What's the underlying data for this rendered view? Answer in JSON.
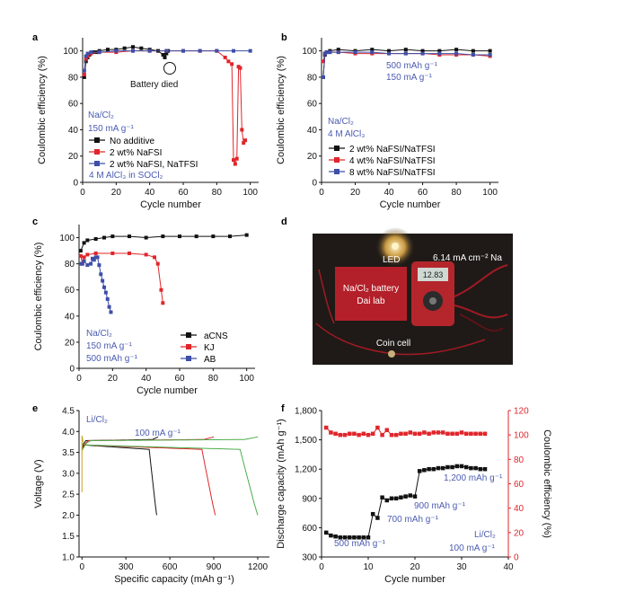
{
  "panels": {
    "a": {
      "letter": "a",
      "xlabel": "Cycle number",
      "ylabel": "Coulombic efficiency (%)",
      "x_ticks": [
        "0",
        "20",
        "40",
        "60",
        "80",
        "100"
      ],
      "y_ticks": [
        "0",
        "20",
        "40",
        "60",
        "80",
        "100"
      ],
      "annotation": "Battery died",
      "info": [
        "Na/Cl₂",
        "150 mA g⁻¹"
      ],
      "legend": [
        "No additive",
        "2 wt% NaFSI",
        "2 wt% NaFSI, NaTFSI"
      ],
      "electrolyte": "4 M AlCl₃ in SOCl₂"
    },
    "b": {
      "letter": "b",
      "xlabel": "Cycle number",
      "ylabel": "Coulombic efficiency (%)",
      "x_ticks": [
        "0",
        "20",
        "40",
        "60",
        "80",
        "100"
      ],
      "y_ticks": [
        "0",
        "20",
        "40",
        "60",
        "80",
        "100"
      ],
      "rates": [
        "500 mAh g⁻¹",
        "150 mA g⁻¹"
      ],
      "info": [
        "Na/Cl₂",
        "4 M AlCl₃"
      ],
      "legend": [
        "2 wt% NaFSI/NaTFSI",
        "4 wt% NaFSI/NaTFSI",
        "8 wt% NaFSI/NaTFSI"
      ]
    },
    "c": {
      "letter": "c",
      "xlabel": "Cycle number",
      "ylabel": "Coulombic efficiency (%)",
      "x_ticks": [
        "0",
        "20",
        "40",
        "60",
        "80",
        "100"
      ],
      "y_ticks": [
        "0",
        "20",
        "40",
        "60",
        "80",
        "100"
      ],
      "info": [
        "Na/Cl₂",
        "150 mA g⁻¹",
        "500 mAh g⁻¹"
      ],
      "legend": [
        "aCNS",
        "KJ",
        "AB"
      ]
    },
    "d": {
      "letter": "d",
      "labels": {
        "led": "LED",
        "current": "6.14 mA cm⁻² Na",
        "battery": "Na/Cl₂ battery",
        "lab": "Dai lab",
        "coin": "Coin cell",
        "meter": "12.83"
      }
    },
    "e": {
      "letter": "e",
      "xlabel": "Specific capacity (mAh g⁻¹)",
      "ylabel": "Voltage (V)",
      "x_ticks": [
        "0",
        "300",
        "600",
        "900",
        "1200"
      ],
      "y_ticks": [
        "1.0",
        "1.5",
        "2.0",
        "2.5",
        "3.0",
        "3.5",
        "4.0",
        "4.5"
      ],
      "system": "Li/Cl₂",
      "rate": "100 mA g⁻¹"
    },
    "f": {
      "letter": "f",
      "xlabel": "Cycle number",
      "ylabel": "Discharge capacity (mAh g⁻¹)",
      "y2label": "Coulombic efficiency (%)",
      "x_ticks": [
        "0",
        "10",
        "20",
        "30",
        "40"
      ],
      "y_ticks": [
        "300",
        "600",
        "900",
        "1,200",
        "1,500",
        "1,800"
      ],
      "y2_ticks": [
        "0",
        "20",
        "40",
        "60",
        "80",
        "100",
        "120"
      ],
      "steps": [
        "500 mAh g⁻¹",
        "700 mAh g⁻¹",
        "900 mAh g⁻¹",
        "1,200 mAh g⁻¹"
      ],
      "system": "Li/Cl₂",
      "rate": "100 mA g⁻¹"
    }
  },
  "colors": {
    "black": "#111111",
    "red": "#e0262b",
    "blue": "#3d4fa8",
    "green": "#5cb85c",
    "olive": "#c9a227",
    "label_blue": "#4b5bb0"
  },
  "chart_data": [
    {
      "panel": "a",
      "type": "scatter",
      "xlim": [
        0,
        105
      ],
      "ylim": [
        0,
        110
      ],
      "series": [
        {
          "name": "No additive",
          "color": "black",
          "x": [
            1,
            2,
            3,
            4,
            6,
            8,
            10,
            15,
            20,
            25,
            30,
            35,
            40,
            45,
            48,
            49,
            50,
            51
          ],
          "y": [
            80,
            92,
            95,
            97,
            99,
            99,
            100,
            101,
            101,
            102,
            103,
            102,
            101,
            100,
            97,
            95,
            98,
            100
          ]
        },
        {
          "name": "2 wt% NaFSI",
          "color": "red",
          "x": [
            1,
            2,
            3,
            5,
            10,
            20,
            30,
            40,
            50,
            60,
            70,
            80,
            85,
            87,
            89,
            90,
            91,
            92,
            93,
            94,
            95,
            96,
            97
          ],
          "y": [
            82,
            94,
            96,
            98,
            99,
            99,
            100,
            100,
            100,
            100,
            100,
            100,
            95,
            92,
            90,
            17,
            14,
            18,
            88,
            87,
            40,
            30,
            32
          ]
        },
        {
          "name": "2 wt% NaFSI, NaTFSI",
          "color": "blue",
          "x": [
            1,
            2,
            3,
            5,
            10,
            20,
            30,
            40,
            50,
            60,
            70,
            80,
            90,
            100
          ],
          "y": [
            85,
            96,
            98,
            99,
            99,
            100,
            100,
            100,
            100,
            100,
            100,
            100,
            100,
            100
          ]
        }
      ]
    },
    {
      "panel": "b",
      "type": "scatter",
      "xlim": [
        0,
        105
      ],
      "ylim": [
        0,
        110
      ],
      "series": [
        {
          "name": "2 wt% NaFSI/NaTFSI",
          "color": "black",
          "x": [
            1,
            2,
            3,
            5,
            10,
            20,
            30,
            40,
            50,
            60,
            70,
            80,
            90,
            100
          ],
          "y": [
            80,
            97,
            99,
            100,
            101,
            100,
            101,
            100,
            101,
            100,
            100,
            101,
            100,
            100
          ]
        },
        {
          "name": "4 wt% NaFSI/NaTFSI",
          "color": "red",
          "x": [
            1,
            2,
            3,
            5,
            10,
            20,
            30,
            40,
            50,
            60,
            70,
            80,
            90,
            100
          ],
          "y": [
            92,
            98,
            99,
            99,
            99,
            98,
            98,
            98,
            98,
            98,
            97,
            97,
            97,
            96
          ]
        },
        {
          "name": "8 wt% NaFSI/NaTFSI",
          "color": "blue",
          "x": [
            1,
            2,
            3,
            5,
            10,
            20,
            30,
            40,
            50,
            60,
            70,
            80,
            90,
            100
          ],
          "y": [
            80,
            98,
            99,
            99,
            99,
            99,
            99,
            98,
            98,
            98,
            98,
            98,
            97,
            97
          ]
        }
      ]
    },
    {
      "panel": "c",
      "type": "scatter",
      "xlim": [
        0,
        105
      ],
      "ylim": [
        0,
        110
      ],
      "series": [
        {
          "name": "aCNS",
          "color": "black",
          "x": [
            1,
            3,
            5,
            10,
            15,
            20,
            30,
            40,
            50,
            60,
            70,
            80,
            90,
            100
          ],
          "y": [
            90,
            96,
            98,
            99,
            100,
            101,
            101,
            100,
            101,
            101,
            101,
            101,
            101,
            102
          ]
        },
        {
          "name": "KJ",
          "color": "red",
          "x": [
            1,
            2,
            3,
            5,
            10,
            20,
            30,
            40,
            45,
            47,
            49,
            50
          ],
          "y": [
            86,
            80,
            85,
            87,
            88,
            88,
            88,
            87,
            85,
            80,
            60,
            50
          ]
        },
        {
          "name": "AB",
          "color": "blue",
          "x": [
            1,
            2,
            3,
            5,
            7,
            8,
            9,
            10,
            11,
            12,
            13,
            14,
            15,
            16,
            17,
            18,
            19
          ],
          "y": [
            80,
            80,
            82,
            79,
            80,
            84,
            83,
            85,
            85,
            79,
            72,
            67,
            62,
            58,
            53,
            47,
            43
          ]
        }
      ]
    },
    {
      "panel": "e",
      "type": "line",
      "xlim": [
        -20,
        1280
      ],
      "ylim": [
        1.0,
        4.5
      ],
      "series": [
        {
          "color": "black",
          "charge_end": 520,
          "discharge_end": 510
        },
        {
          "color": "red",
          "charge_end": 900,
          "discharge_end": 910
        },
        {
          "color": "green",
          "charge_end": 1200,
          "discharge_end": 1200
        }
      ]
    },
    {
      "panel": "f",
      "type": "scatter",
      "xlim": [
        0,
        40
      ],
      "ylim": [
        300,
        1800
      ],
      "y2lim": [
        0,
        120
      ],
      "series": [
        {
          "name": "Discharge capacity",
          "axis": "left",
          "color": "black",
          "x": [
            1,
            2,
            3,
            4,
            5,
            6,
            7,
            8,
            9,
            10,
            11,
            12,
            13,
            14,
            15,
            16,
            17,
            18,
            19,
            20,
            21,
            22,
            23,
            24,
            25,
            26,
            27,
            28,
            29,
            30,
            31,
            32,
            33,
            34,
            35
          ],
          "y": [
            550,
            520,
            510,
            500,
            500,
            500,
            500,
            500,
            500,
            500,
            740,
            700,
            910,
            880,
            900,
            900,
            910,
            920,
            930,
            920,
            1180,
            1190,
            1200,
            1200,
            1210,
            1210,
            1220,
            1220,
            1230,
            1230,
            1220,
            1210,
            1210,
            1200,
            1200
          ]
        },
        {
          "name": "Coulombic efficiency",
          "axis": "right",
          "color": "red",
          "x": [
            1,
            2,
            3,
            4,
            5,
            6,
            7,
            8,
            9,
            10,
            11,
            12,
            13,
            14,
            15,
            16,
            17,
            18,
            19,
            20,
            21,
            22,
            23,
            24,
            25,
            26,
            27,
            28,
            29,
            30,
            31,
            32,
            33,
            34,
            35
          ],
          "y": [
            106,
            102,
            101,
            100,
            100,
            101,
            101,
            100,
            101,
            100,
            101,
            106,
            100,
            104,
            100,
            100,
            101,
            101,
            102,
            101,
            101,
            102,
            101,
            102,
            102,
            102,
            101,
            101,
            101,
            102,
            101,
            101,
            101,
            101,
            101
          ]
        }
      ]
    }
  ]
}
